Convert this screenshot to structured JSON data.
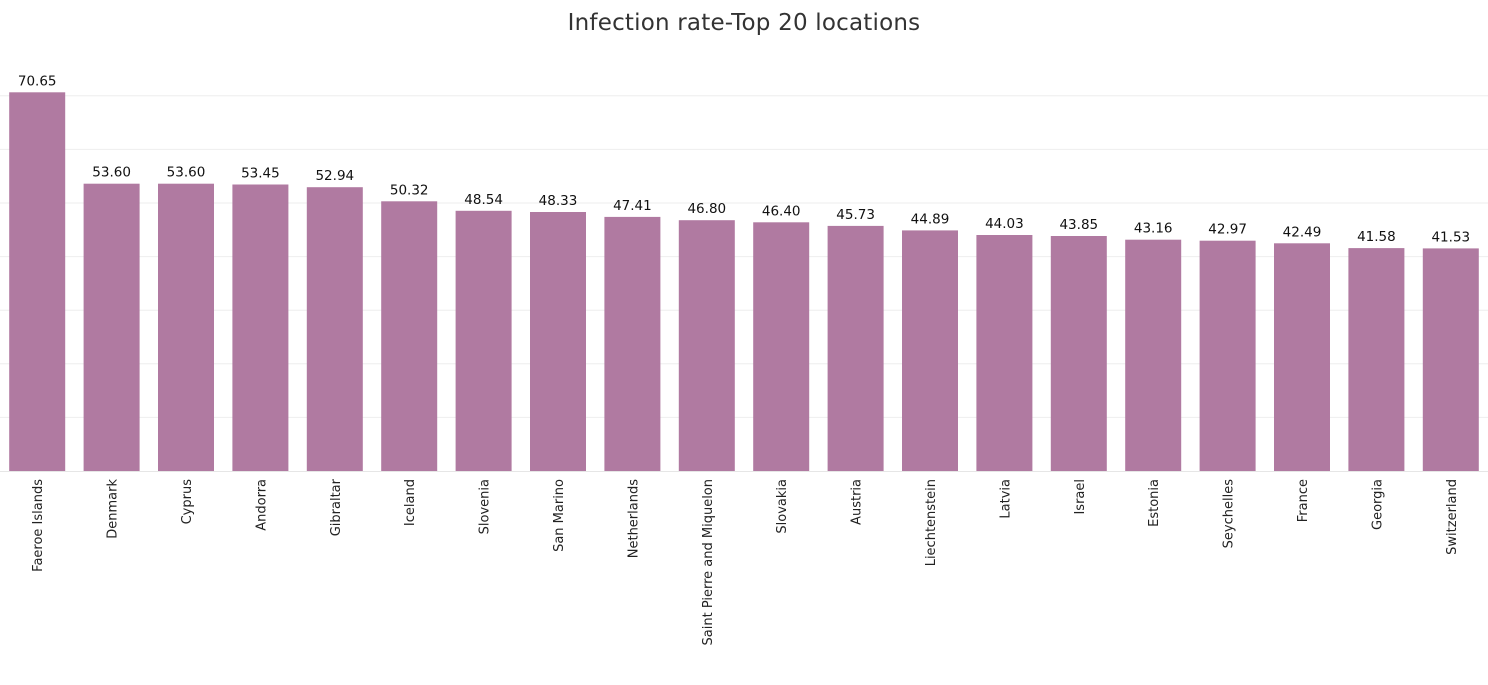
{
  "chart_data": {
    "type": "bar",
    "title": "Infection rate-Top 20 locations",
    "xlabel": "",
    "ylabel": "",
    "ylim": [
      0,
      75
    ],
    "grid": true,
    "bar_color": "#b07aa1",
    "categories": [
      "Faeroe Islands",
      "Denmark",
      "Cyprus",
      "Andorra",
      "Gibraltar",
      "Iceland",
      "Slovenia",
      "San Marino",
      "Netherlands",
      "Saint Pierre and Miquelon",
      "Slovakia",
      "Austria",
      "Liechtenstein",
      "Latvia",
      "Israel",
      "Estonia",
      "Seychelles",
      "France",
      "Georgia",
      "Switzerland"
    ],
    "values": [
      70.65,
      53.6,
      53.6,
      53.45,
      52.94,
      50.32,
      48.54,
      48.33,
      47.41,
      46.8,
      46.4,
      45.73,
      44.89,
      44.03,
      43.85,
      43.16,
      42.97,
      42.49,
      41.58,
      41.53
    ],
    "value_labels": [
      "70.65",
      "53.60",
      "53.60",
      "53.45",
      "52.94",
      "50.32",
      "48.54",
      "48.33",
      "47.41",
      "46.80",
      "46.40",
      "45.73",
      "44.89",
      "44.03",
      "43.85",
      "43.16",
      "42.97",
      "42.49",
      "41.58",
      "41.53"
    ]
  }
}
